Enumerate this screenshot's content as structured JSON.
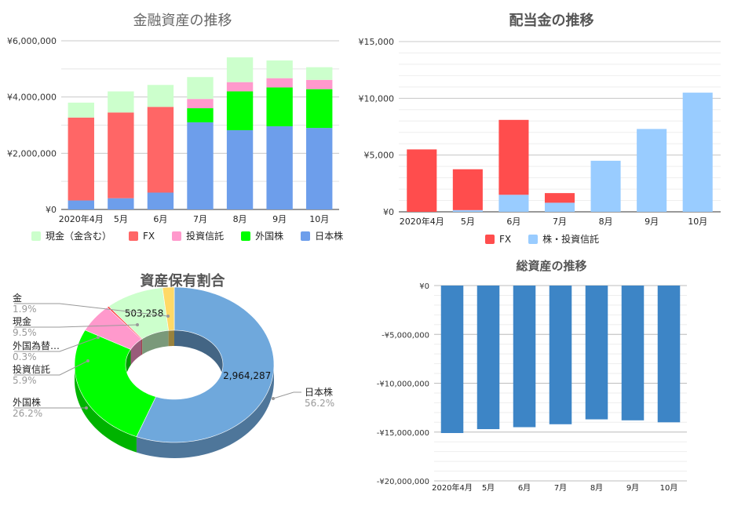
{
  "chart_data": [
    {
      "type": "bar",
      "stacked": true,
      "title": "金融資産の推移",
      "categories": [
        "2020年4月",
        "5月",
        "6月",
        "7月",
        "8月",
        "9月",
        "10月"
      ],
      "ylim": [
        0,
        6000000
      ],
      "yticks": [
        0,
        2000000,
        4000000,
        6000000
      ],
      "ytick_labels": [
        "¥0",
        "¥2,000,000",
        "¥4,000,000",
        "¥6,000,000"
      ],
      "grid": true,
      "legend_position": "bottom",
      "series": [
        {
          "name": "日本株",
          "color": "#6d9eeb",
          "values": [
            320000,
            400000,
            600000,
            3100000,
            2820000,
            2960000,
            2900000
          ]
        },
        {
          "name": "外国株",
          "color": "#00ff00",
          "values": [
            0,
            0,
            0,
            500000,
            1380000,
            1380000,
            1380000
          ]
        },
        {
          "name": "投資信託",
          "color": "#ff99cc",
          "values": [
            0,
            0,
            0,
            330000,
            330000,
            330000,
            330000
          ]
        },
        {
          "name": "FX",
          "color": "#ff6666",
          "values": [
            2950000,
            3050000,
            3050000,
            0,
            0,
            0,
            0
          ]
        },
        {
          "name": "現金（金含む）",
          "color": "#ccffcc",
          "values": [
            530000,
            750000,
            780000,
            780000,
            880000,
            630000,
            450000
          ]
        }
      ],
      "legend_order": [
        "現金（金含む）",
        "FX",
        "投資信託",
        "外国株",
        "日本株"
      ]
    },
    {
      "type": "bar",
      "stacked": true,
      "title": "配当金の推移",
      "categories": [
        "2020年4月",
        "5月",
        "6月",
        "7月",
        "8月",
        "9月",
        "10月"
      ],
      "ylim": [
        0,
        15000
      ],
      "yticks": [
        0,
        5000,
        10000,
        15000
      ],
      "ytick_labels": [
        "¥0",
        "¥5,000",
        "¥10,000",
        "¥15,000"
      ],
      "grid": true,
      "legend_position": "bottom",
      "series": [
        {
          "name": "株・投資信託",
          "color": "#99ccff",
          "values": [
            0,
            150,
            1500,
            800,
            4500,
            7300,
            10500
          ]
        },
        {
          "name": "FX",
          "color": "#ff4d4d",
          "values": [
            5500,
            3600,
            6600,
            850,
            0,
            0,
            0
          ]
        }
      ],
      "legend_order": [
        "FX",
        "株・投資信託"
      ]
    },
    {
      "type": "pie",
      "donut": true,
      "title": "資産保有割合",
      "slices": [
        {
          "name": "日本株",
          "value": 2964287,
          "percent": "56.2%",
          "color": "#6fa8dc",
          "value_label": "2,964,287"
        },
        {
          "name": "外国株",
          "value": 1382000,
          "percent": "26.2%",
          "color": "#00ff00",
          "value_label": ""
        },
        {
          "name": "投資信託",
          "value": 311000,
          "percent": "5.9%",
          "color": "#ff99cc",
          "value_label": ""
        },
        {
          "name": "外国為替…",
          "value": 16000,
          "percent": "0.3%",
          "color": "#ff3333",
          "value_label": ""
        },
        {
          "name": "現金",
          "value": 503258,
          "percent": "9.5%",
          "color": "#ccffcc",
          "value_label": "503,258"
        },
        {
          "name": "金",
          "value": 100000,
          "percent": "1.9%",
          "color": "#ffd966",
          "value_label": ""
        }
      ]
    },
    {
      "type": "bar",
      "title": "総資産の推移",
      "categories": [
        "2020年4月",
        "5月",
        "6月",
        "7月",
        "8月",
        "9月",
        "10月"
      ],
      "ylim": [
        -20000000,
        0
      ],
      "yticks": [
        0,
        -5000000,
        -10000000,
        -15000000,
        -20000000
      ],
      "ytick_labels": [
        "¥0",
        "-¥5,000,000",
        "-¥10,000,000",
        "-¥15,000,000",
        "-¥20,000,000"
      ],
      "grid": true,
      "color": "#3d85c6",
      "series": [
        {
          "values": [
            -15100000,
            -14700000,
            -14500000,
            -14200000,
            -13700000,
            -13800000,
            -14000000
          ]
        }
      ]
    }
  ]
}
